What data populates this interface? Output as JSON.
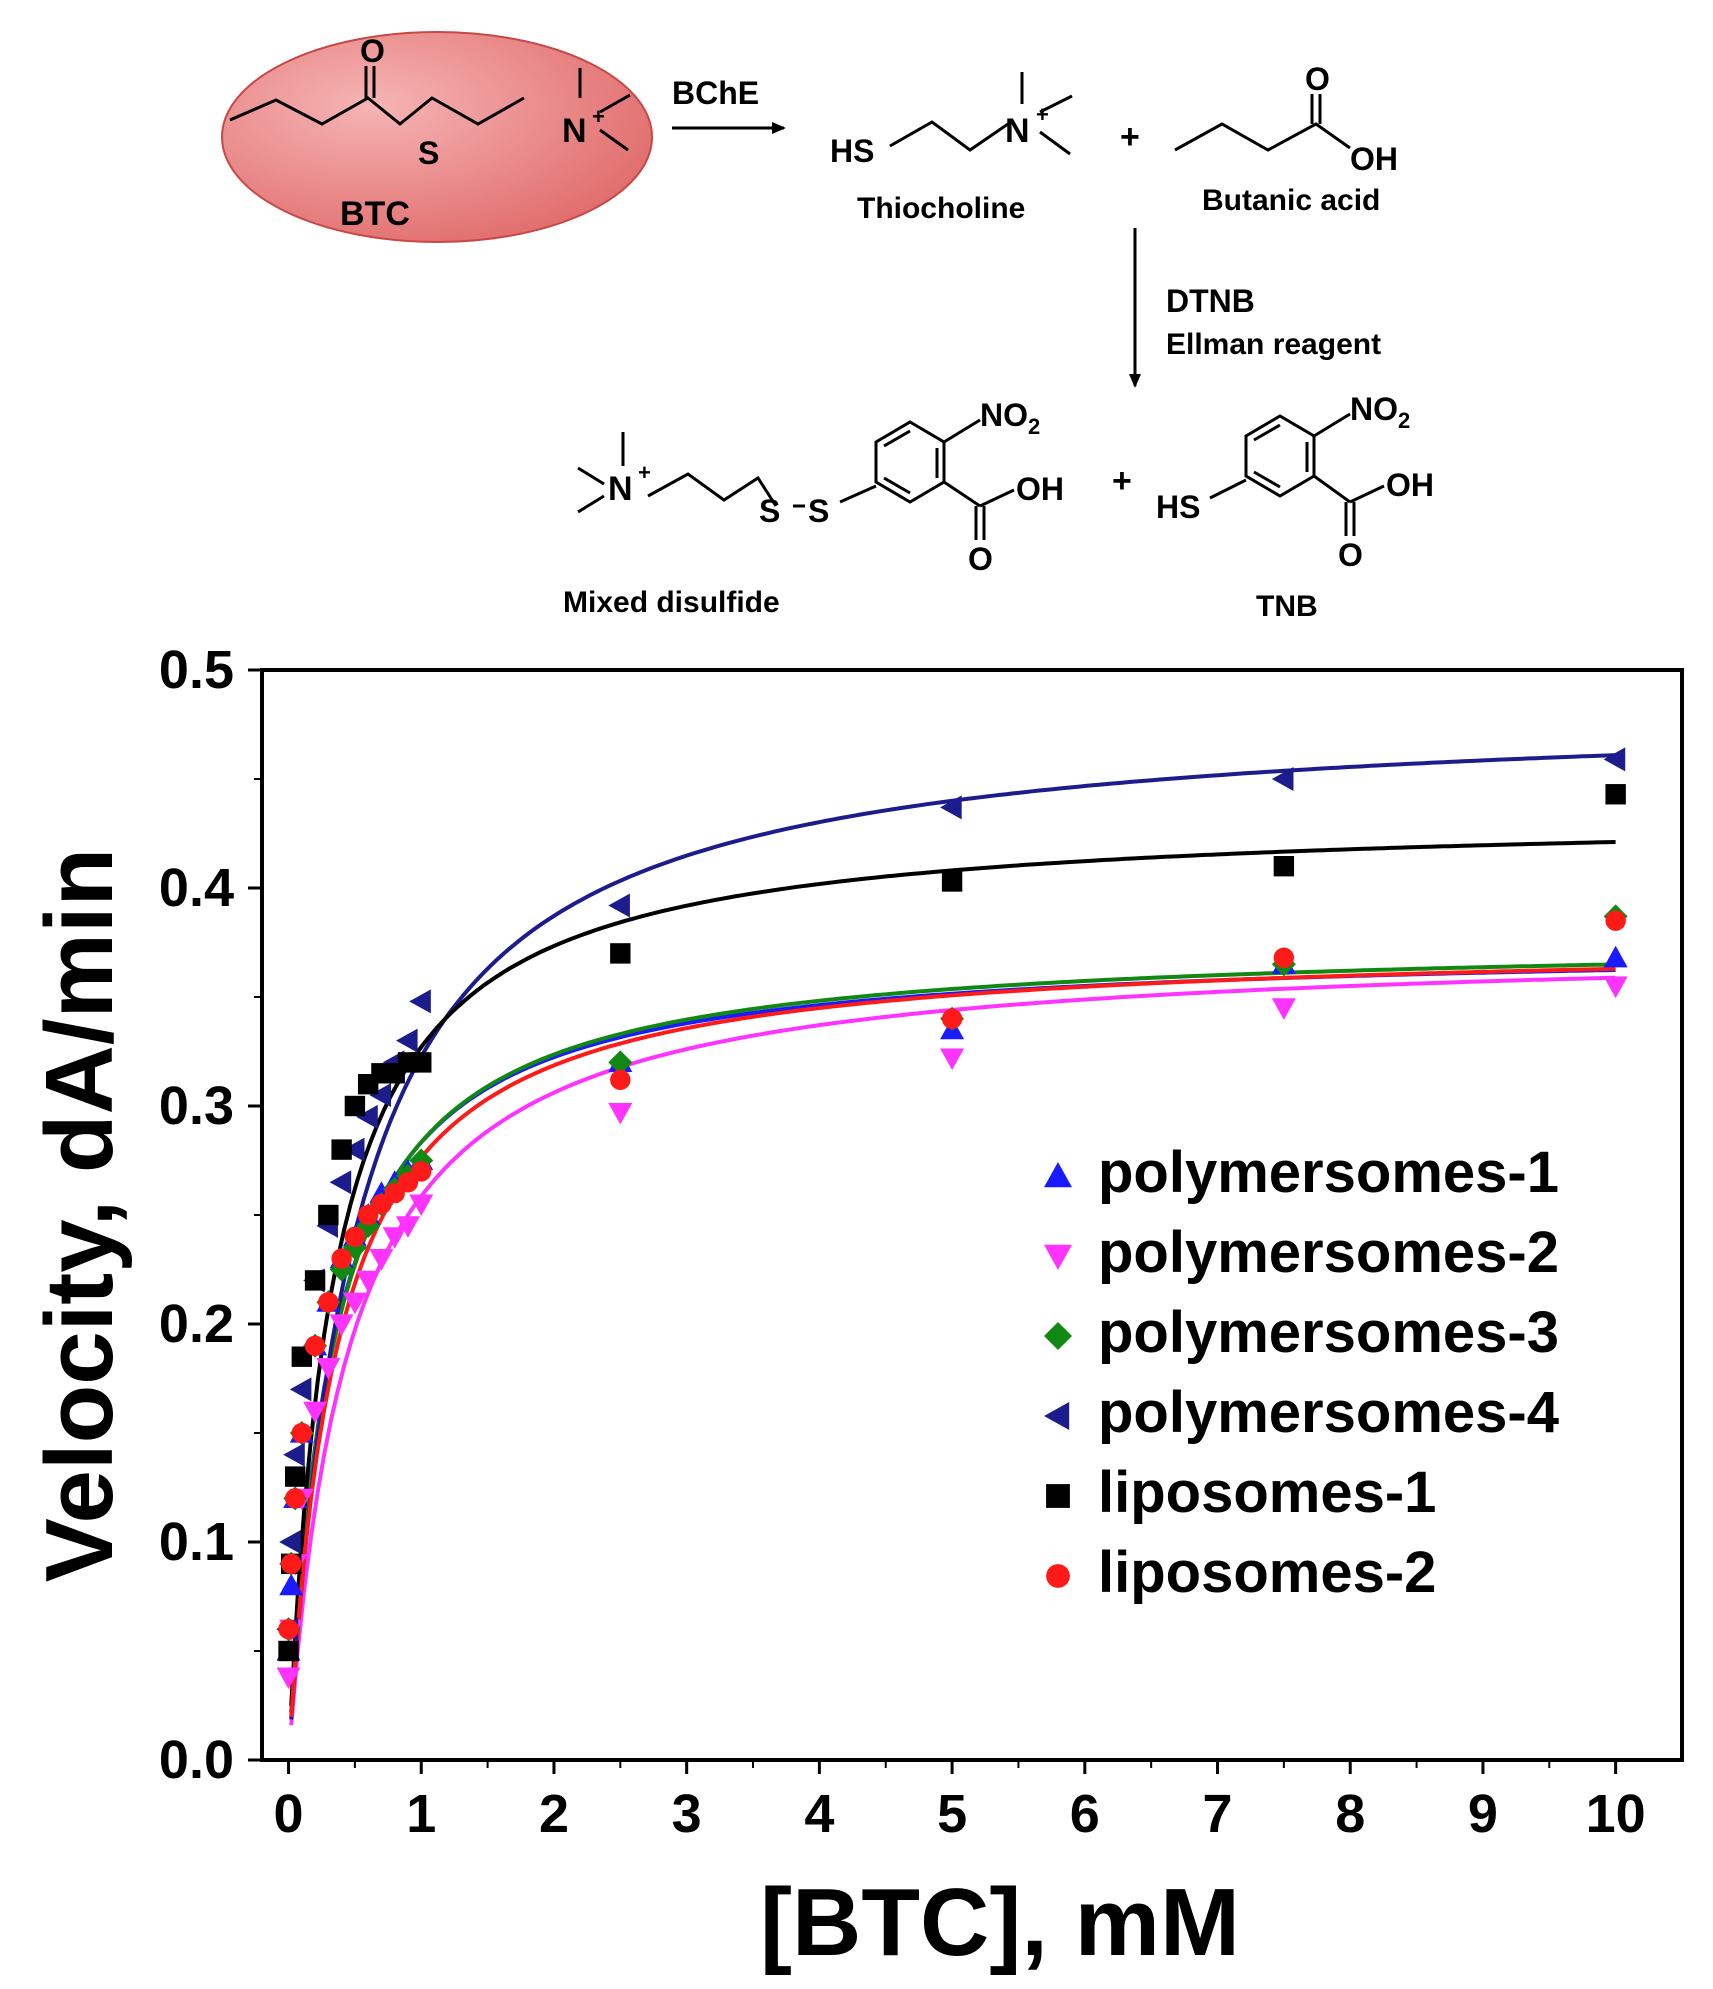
{
  "scheme": {
    "enzyme_label": "BChE",
    "substrate": {
      "label": "BTC",
      "o": "O",
      "s": "S",
      "n": "N",
      "plus": "+"
    },
    "product1": {
      "label": "Thiocholine",
      "hs": "HS",
      "n": "N",
      "plus": "+"
    },
    "plus_sign": "+",
    "product2": {
      "label": "Butanic acid",
      "o": "O",
      "oh": "OH"
    },
    "reagent": {
      "line1": "DTNB",
      "line2": "Ellman reagent"
    },
    "product3": {
      "label": "Mixed disulfide",
      "n": "N",
      "plus": "+",
      "s1": "S",
      "s2": "S",
      "no2": "NO",
      "no2_sub": "2",
      "oh": "OH",
      "o": "O"
    },
    "product4": {
      "label": "TNB",
      "hs": "HS",
      "no2": "NO",
      "no2_sub": "2",
      "oh": "OH",
      "o": "O"
    },
    "colors": {
      "ellipse_fill": "#e88080",
      "ellipse_stroke": "#c84040"
    }
  },
  "chart_data": {
    "type": "scatter",
    "xlabel": "[BTC], mM",
    "ylabel": "Velocity, dA/min",
    "xlim": [
      -0.2,
      10.5
    ],
    "ylim": [
      0.0,
      0.5
    ],
    "xticks": [
      "0",
      "1",
      "2",
      "3",
      "4",
      "5",
      "6",
      "7",
      "8",
      "9",
      "10"
    ],
    "yticks": [
      "0.0",
      "0.1",
      "0.2",
      "0.3",
      "0.4",
      "0.5"
    ],
    "legend_position": "bottom-right",
    "series": [
      {
        "name": "polymersomes-1",
        "color": "#1a1aff",
        "marker": "triangle-up",
        "fit": {
          "vmax": 0.374,
          "km": 0.32
        },
        "x": [
          0,
          0.02,
          0.05,
          0.1,
          0.2,
          0.3,
          0.4,
          0.5,
          0.6,
          0.7,
          0.8,
          0.9,
          1.0,
          2.5,
          5,
          7.5,
          10
        ],
        "y": [
          0.05,
          0.08,
          0.12,
          0.15,
          0.19,
          0.21,
          0.23,
          0.24,
          0.25,
          0.26,
          0.265,
          0.27,
          0.275,
          0.32,
          0.335,
          0.365,
          0.368
        ]
      },
      {
        "name": "polymersomes-2",
        "color": "#ff33ff",
        "marker": "triangle-down",
        "fit": {
          "vmax": 0.375,
          "km": 0.45
        },
        "x": [
          0,
          0.02,
          0.05,
          0.1,
          0.2,
          0.3,
          0.4,
          0.5,
          0.6,
          0.7,
          0.8,
          0.9,
          1.0,
          2.5,
          5,
          7.5,
          10
        ],
        "y": [
          0.038,
          0.06,
          0.09,
          0.12,
          0.16,
          0.18,
          0.2,
          0.21,
          0.22,
          0.23,
          0.24,
          0.245,
          0.255,
          0.297,
          0.322,
          0.345,
          0.355
        ]
      },
      {
        "name": "polymersomes-3",
        "color": "#118811",
        "marker": "diamond",
        "fit": {
          "vmax": 0.377,
          "km": 0.33
        },
        "x": [
          0,
          0.02,
          0.05,
          0.1,
          0.2,
          0.3,
          0.4,
          0.5,
          0.6,
          0.7,
          0.8,
          0.9,
          1.0,
          2.5,
          5,
          7.5,
          10
        ],
        "y": [
          0.06,
          0.09,
          0.12,
          0.15,
          0.19,
          0.21,
          0.225,
          0.235,
          0.245,
          0.255,
          0.262,
          0.268,
          0.275,
          0.32,
          0.34,
          0.365,
          0.387
        ]
      },
      {
        "name": "polymersomes-4",
        "color": "#1c1c8c",
        "marker": "triangle-left",
        "fit": {
          "vmax": 0.484,
          "km": 0.5
        },
        "x": [
          0,
          0.02,
          0.05,
          0.1,
          0.2,
          0.3,
          0.4,
          0.5,
          0.6,
          0.7,
          0.8,
          0.9,
          1.0,
          2.5,
          5,
          7.5,
          10
        ],
        "y": [
          0.06,
          0.1,
          0.14,
          0.17,
          0.22,
          0.245,
          0.265,
          0.28,
          0.295,
          0.305,
          0.32,
          0.33,
          0.348,
          0.392,
          0.437,
          0.45,
          0.459
        ]
      },
      {
        "name": "liposomes-1",
        "color": "#000000",
        "marker": "square",
        "fit": {
          "vmax": 0.435,
          "km": 0.33
        },
        "x": [
          0,
          0.02,
          0.05,
          0.1,
          0.2,
          0.3,
          0.4,
          0.5,
          0.6,
          0.7,
          0.8,
          0.9,
          1.0,
          2.5,
          5,
          7.5,
          10
        ],
        "y": [
          0.05,
          0.09,
          0.13,
          0.185,
          0.22,
          0.25,
          0.28,
          0.3,
          0.31,
          0.315,
          0.315,
          0.32,
          0.32,
          0.37,
          0.403,
          0.41,
          0.443
        ]
      },
      {
        "name": "liposomes-2",
        "color": "#ff1a1a",
        "marker": "circle",
        "fit": {
          "vmax": 0.376,
          "km": 0.36
        },
        "x": [
          0,
          0.02,
          0.05,
          0.1,
          0.2,
          0.3,
          0.4,
          0.5,
          0.6,
          0.7,
          0.8,
          0.9,
          1.0,
          2.5,
          5,
          7.5,
          10
        ],
        "y": [
          0.06,
          0.09,
          0.12,
          0.15,
          0.19,
          0.21,
          0.23,
          0.24,
          0.25,
          0.255,
          0.26,
          0.265,
          0.27,
          0.312,
          0.34,
          0.368,
          0.385
        ]
      }
    ]
  }
}
